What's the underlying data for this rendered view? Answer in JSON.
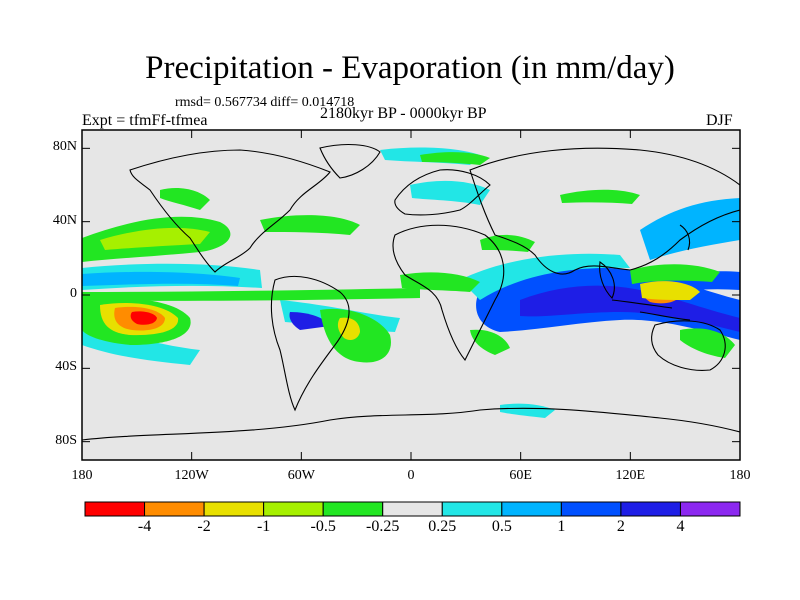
{
  "title": "Precipitation - Evaporation (in mm/day)",
  "stats": "rmsd= 0.567734 diff= 0.014718",
  "experiment": "Expt = tfmFf-tfmea",
  "period": "2180kyr BP - 0000kyr BP",
  "season": "DJF",
  "axes": {
    "y_ticks": [
      {
        "label": "80N",
        "lat": 80
      },
      {
        "label": "40N",
        "lat": 40
      },
      {
        "label": "0",
        "lat": 0
      },
      {
        "label": "40S",
        "lat": -40
      },
      {
        "label": "80S",
        "lat": -80
      }
    ],
    "x_ticks": [
      {
        "label": "180",
        "lon": -180
      },
      {
        "label": "120W",
        "lon": -120
      },
      {
        "label": "60W",
        "lon": -60
      },
      {
        "label": "0",
        "lon": 0
      },
      {
        "label": "60E",
        "lon": 60
      },
      {
        "label": "120E",
        "lon": 120
      },
      {
        "label": "180",
        "lon": 180
      }
    ],
    "lat_range": [
      -90,
      90
    ],
    "lon_range": [
      -180,
      180
    ]
  },
  "colorbar": {
    "colors": [
      "#ff0000",
      "#ff8c00",
      "#e8e000",
      "#a6f000",
      "#22e622",
      "#e6e6e6",
      "#22e6e6",
      "#00b4ff",
      "#0050ff",
      "#1e1ee6",
      "#8c28f0"
    ],
    "labels": [
      "-4",
      "-2",
      "-1",
      "-0.5",
      "-0.25",
      "0.25",
      "0.5",
      "1",
      "2",
      "4"
    ]
  },
  "colors": {
    "background": "#e6e6e6",
    "coast": "#000000"
  }
}
